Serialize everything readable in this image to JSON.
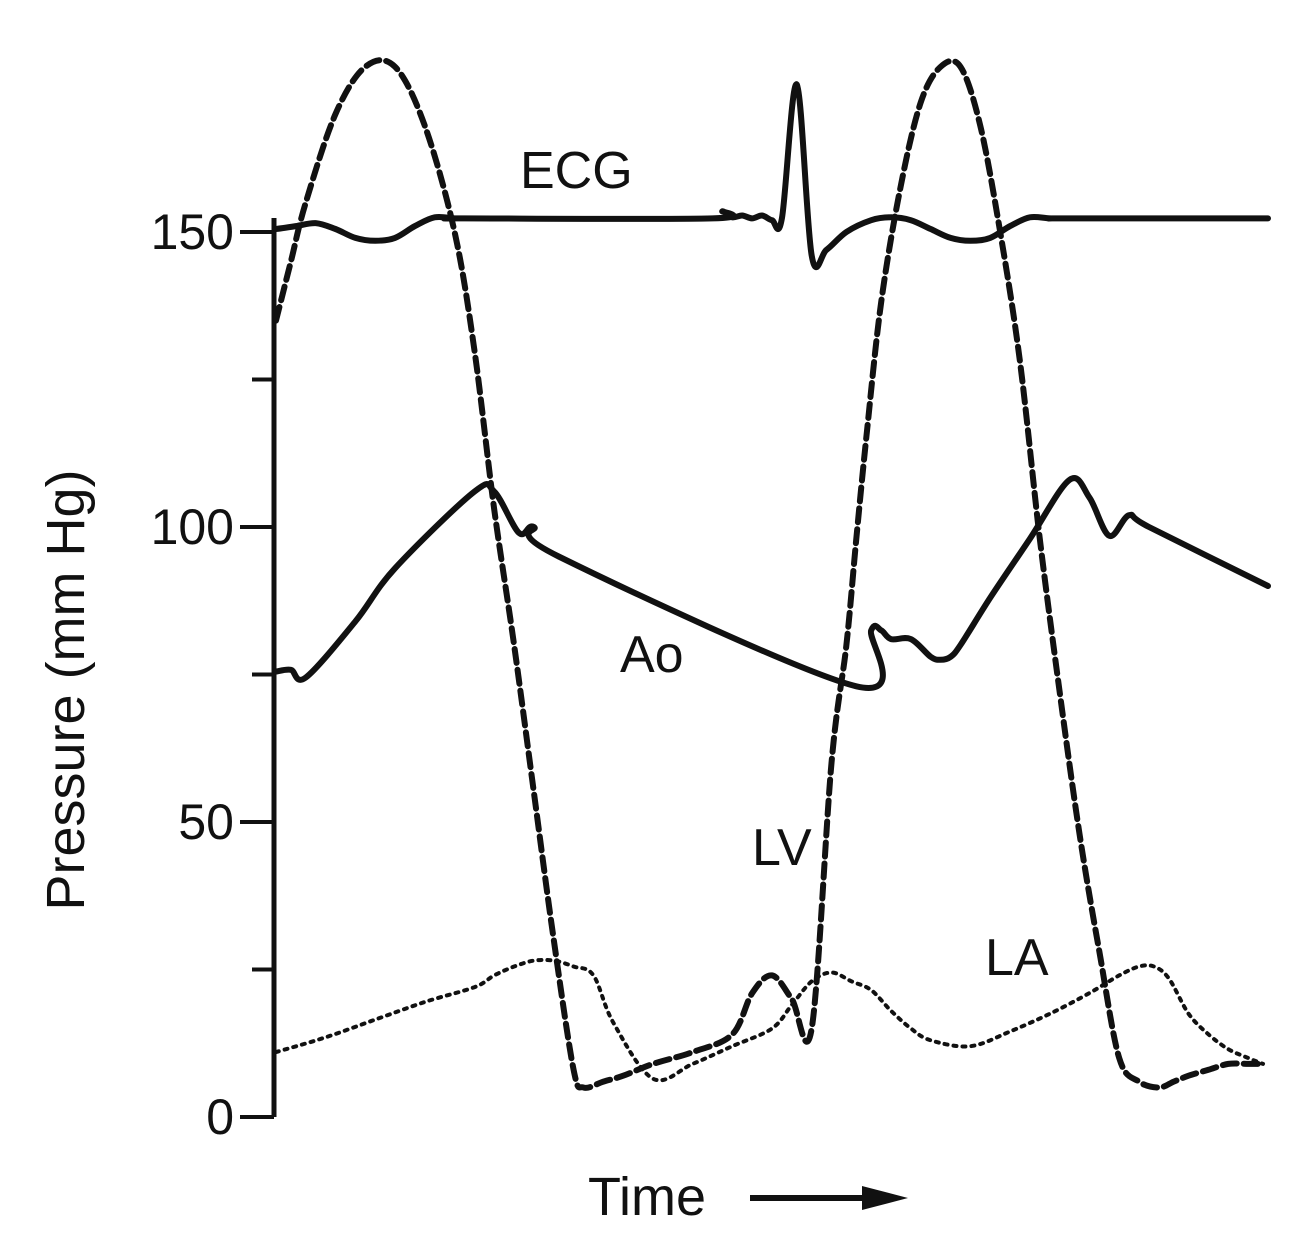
{
  "chart_data": {
    "type": "line",
    "xlabel": "Time",
    "ylabel": "Pressure (mm Hg)",
    "ylim": [
      0,
      160
    ],
    "yticks": [
      0,
      50,
      100,
      150
    ],
    "grid": false,
    "legend": "none",
    "x_units": "relative time (0-100, no printed ticks)",
    "series": [
      {
        "name": "ECG",
        "style": "solid",
        "color": "#111111",
        "x": [
          0,
          2,
          4,
          6,
          8,
          10,
          12,
          14,
          16,
          18,
          19,
          44,
          45,
          46,
          47,
          48,
          49,
          50,
          51,
          52.5,
          54,
          55.5,
          57.5,
          60,
          62,
          64,
          66,
          68,
          70,
          72,
          74,
          76,
          78,
          80,
          100
        ],
        "y": [
          150.5,
          151,
          151.5,
          150.5,
          149,
          148.5,
          149,
          151,
          152.5,
          152.3,
          152.3,
          152.3,
          153.5,
          152.5,
          152.8,
          152.3,
          152.8,
          152,
          152.3,
          175,
          146,
          147,
          150,
          152,
          152.5,
          152,
          150.5,
          149,
          148.5,
          149,
          151,
          152.5,
          152.3,
          152.3,
          152.3
        ]
      },
      {
        "name": "Ao",
        "style": "solid",
        "color": "#111111",
        "x": [
          0,
          1.5,
          3,
          8,
          12,
          20,
          22,
          24.5,
          26,
          28.5,
          58.5,
          60,
          61,
          62,
          64,
          66,
          67,
          68,
          69,
          72,
          76,
          80,
          82,
          84,
          86,
          88,
          100
        ],
        "y": [
          75.5,
          75.8,
          74.5,
          84,
          93,
          106,
          106,
          99,
          100,
          95,
          73,
          82.5,
          82.5,
          81,
          81,
          78,
          77.5,
          78,
          80,
          88,
          98,
          108,
          105,
          98.5,
          102,
          100,
          90
        ]
      },
      {
        "name": "LV",
        "style": "dashed",
        "color": "#111111",
        "x": [
          0,
          1.5,
          3,
          6,
          9,
          12,
          15,
          18,
          20,
          22,
          24,
          26,
          28,
          30,
          31,
          33,
          35,
          38,
          42,
          46,
          48,
          50,
          52,
          54,
          56,
          57.5,
          58.5,
          59.5,
          61,
          63,
          65,
          67,
          69,
          71,
          73,
          75,
          77,
          79,
          81,
          83,
          85,
          87,
          89,
          90.5,
          92,
          94,
          96,
          98,
          99.5
        ],
        "y": [
          135,
          145,
          155,
          170,
          178,
          178,
          168,
          150,
          130,
          103,
          80,
          55,
          30,
          8,
          5,
          6,
          7,
          9,
          11,
          14,
          21,
          24,
          20,
          15,
          60,
          80,
          98,
          115,
          138,
          158,
          172,
          178,
          178,
          168,
          150,
          128,
          98,
          72,
          48,
          28,
          10,
          6,
          5,
          6,
          7,
          8,
          9,
          9,
          9
        ]
      },
      {
        "name": "LA",
        "style": "dotted",
        "color": "#111111",
        "x": [
          0,
          5,
          10,
          15,
          20,
          22,
          24,
          26,
          28,
          30,
          32,
          34,
          38,
          42,
          46,
          50,
          52,
          54,
          56,
          58,
          60,
          62,
          64,
          66,
          70,
          74,
          78,
          82,
          85,
          87,
          88.5,
          90,
          92,
          94,
          96,
          98,
          99.5
        ],
        "y": [
          11,
          13.5,
          16.5,
          19.5,
          22,
          24,
          25.5,
          26.5,
          26.5,
          25.5,
          24,
          16,
          6.5,
          9,
          12,
          15,
          19,
          23,
          24.5,
          23,
          21.5,
          18,
          15,
          13,
          12,
          14.5,
          17.5,
          21,
          24,
          25.5,
          25.5,
          23.5,
          17.5,
          14,
          11.5,
          10,
          9
        ]
      }
    ],
    "annotations": [
      {
        "text": "ECG",
        "series": "ECG"
      },
      {
        "text": "Ao",
        "series": "Ao"
      },
      {
        "text": "LV",
        "series": "LV"
      },
      {
        "text": "LA",
        "series": "LA"
      }
    ]
  }
}
